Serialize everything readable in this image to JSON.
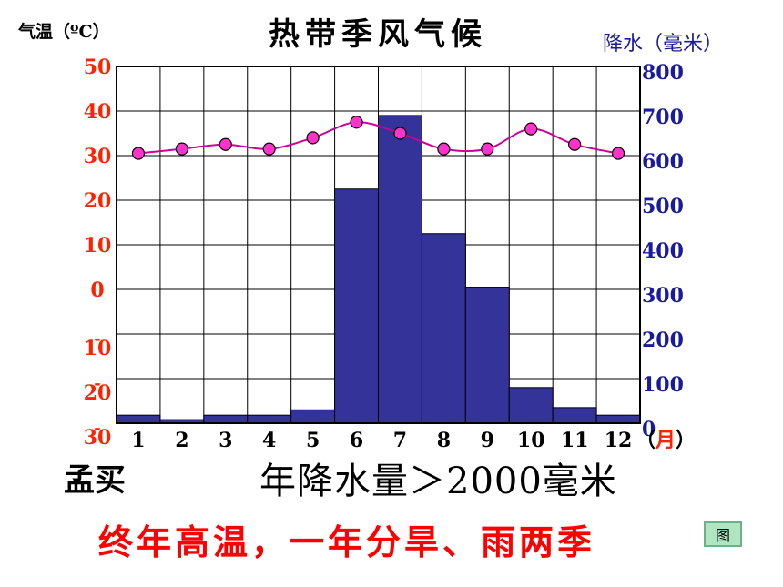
{
  "chart_data": {
    "type": "bar+line",
    "title": "热带季风气候",
    "y_left_label": "气温（ºC）",
    "y_right_label": "降水（毫米）",
    "x_unit": "（月）",
    "x_unit_open": "（",
    "x_unit_month": "月",
    "x_unit_close": "）",
    "categories": [
      "1",
      "2",
      "3",
      "4",
      "5",
      "6",
      "7",
      "8",
      "9",
      "10",
      "11",
      "12"
    ],
    "temperature": {
      "values": [
        30.5,
        31.5,
        32.5,
        31.5,
        34,
        37.5,
        35,
        31.5,
        31.5,
        36,
        32.5,
        30.5
      ],
      "color": "#cc0099",
      "marker_fill": "#ff33cc"
    },
    "precipitation": {
      "values": [
        18,
        8,
        18,
        18,
        30,
        525,
        690,
        425,
        305,
        80,
        35,
        18
      ],
      "color": "#333399"
    },
    "y_left_ticks": [
      "50",
      "40",
      "30",
      "20",
      "10",
      "0",
      "-10",
      "-20",
      "-30"
    ],
    "y_left_range": [
      -30,
      50
    ],
    "y_right_ticks": [
      "800",
      "700",
      "600",
      "500",
      "400",
      "300",
      "200",
      "100",
      "0"
    ],
    "y_right_range": [
      0,
      800
    ],
    "grid": true
  },
  "text": {
    "city": "孟买",
    "annual_precip": "年降水量＞2000毫米",
    "summary": "终年高温，一年分旱、雨两季",
    "figure_button": "图"
  },
  "colors": {
    "left_axis_labels": "#ff2200",
    "right_axis_labels": "#1a1a9c",
    "x_axis_labels": "#000000"
  }
}
